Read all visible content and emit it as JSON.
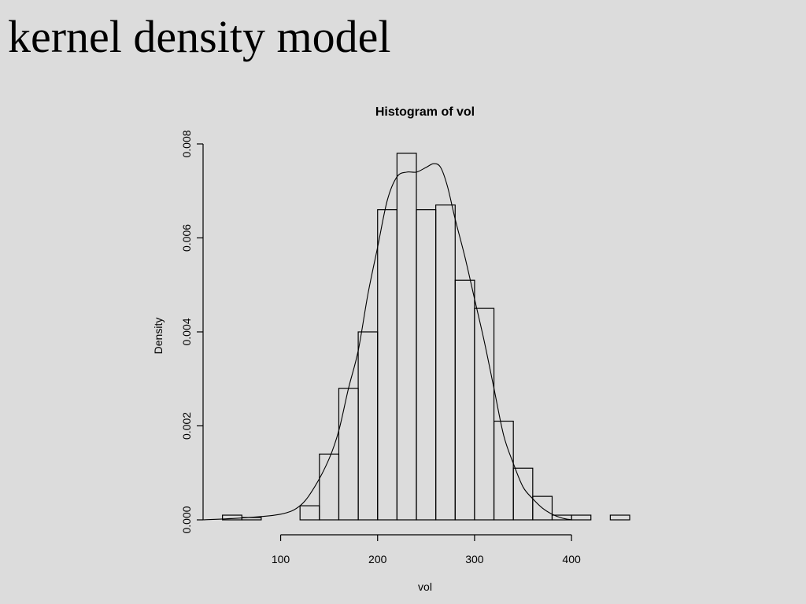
{
  "slide": {
    "title": "kernel density model"
  },
  "chart_data": {
    "type": "histogram",
    "title": "Histogram of vol",
    "xlabel": "vol",
    "ylabel": "Density",
    "xlim": [
      20,
      460
    ],
    "ylim": [
      0,
      0.008
    ],
    "x_ticks": [
      100,
      200,
      300,
      400
    ],
    "y_ticks": [
      0.0,
      0.002,
      0.004,
      0.006,
      0.008
    ],
    "y_tick_labels": [
      "0.000",
      "0.002",
      "0.004",
      "0.006",
      "0.008"
    ],
    "grid": false,
    "bins": [
      {
        "x0": 40,
        "x1": 60,
        "density": 0.0001
      },
      {
        "x0": 60,
        "x1": 80,
        "density": 5e-05
      },
      {
        "x0": 80,
        "x1": 100,
        "density": 0.0
      },
      {
        "x0": 100,
        "x1": 120,
        "density": 0.0
      },
      {
        "x0": 120,
        "x1": 140,
        "density": 0.0003
      },
      {
        "x0": 140,
        "x1": 160,
        "density": 0.0014
      },
      {
        "x0": 160,
        "x1": 180,
        "density": 0.0028
      },
      {
        "x0": 180,
        "x1": 200,
        "density": 0.004
      },
      {
        "x0": 200,
        "x1": 220,
        "density": 0.0066
      },
      {
        "x0": 220,
        "x1": 240,
        "density": 0.0078
      },
      {
        "x0": 240,
        "x1": 260,
        "density": 0.0066
      },
      {
        "x0": 260,
        "x1": 280,
        "density": 0.0067
      },
      {
        "x0": 280,
        "x1": 300,
        "density": 0.0051
      },
      {
        "x0": 300,
        "x1": 320,
        "density": 0.0045
      },
      {
        "x0": 320,
        "x1": 340,
        "density": 0.0021
      },
      {
        "x0": 340,
        "x1": 360,
        "density": 0.0011
      },
      {
        "x0": 360,
        "x1": 380,
        "density": 0.0005
      },
      {
        "x0": 380,
        "x1": 400,
        "density": 0.0001
      },
      {
        "x0": 400,
        "x1": 420,
        "density": 0.0001
      },
      {
        "x0": 420,
        "x1": 440,
        "density": 0.0
      },
      {
        "x0": 440,
        "x1": 460,
        "density": 0.0001
      }
    ],
    "density_curve": {
      "x": [
        20,
        60,
        100,
        120,
        135,
        150,
        160,
        170,
        180,
        190,
        200,
        210,
        220,
        230,
        240,
        250,
        258,
        265,
        272,
        280,
        290,
        300,
        310,
        320,
        330,
        340,
        350,
        360,
        370,
        380,
        390,
        400
      ],
      "y": [
        0.0,
        4e-05,
        0.00012,
        0.0003,
        0.0007,
        0.0013,
        0.0019,
        0.0028,
        0.0036,
        0.0048,
        0.0058,
        0.0068,
        0.0073,
        0.0074,
        0.0074,
        0.0075,
        0.00758,
        0.0075,
        0.0071,
        0.0064,
        0.0056,
        0.0047,
        0.0038,
        0.0028,
        0.0018,
        0.0012,
        0.0007,
        0.00045,
        0.00025,
        0.00012,
        4e-05,
        0.0
      ]
    }
  }
}
